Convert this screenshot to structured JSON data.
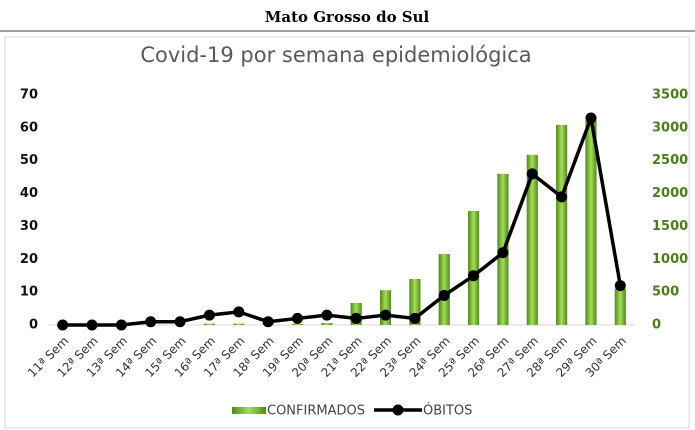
{
  "header": {
    "title": "Mato Grosso do Sul"
  },
  "chart_data": {
    "type": "bar_line",
    "title": "Covid-19 por semana epidemiológica",
    "categories": [
      "11ª Sem",
      "12ª Sem",
      "13ª Sem",
      "14ª Sem",
      "15ª Sem",
      "16ª Sem",
      "17ª Sem",
      "18ª Sem",
      "19ª Sem",
      "20ª Sem",
      "21ª Sem",
      "22ª Sem",
      "23ª Sem",
      "24ª Sem",
      "25ª Sem",
      "26ª Sem",
      "27ª Sem",
      "28ª Sem",
      "29ª Sem",
      "30ª Sem"
    ],
    "series": [
      {
        "name": "CONFIRMADOS",
        "type": "bar",
        "axis": "y2",
        "color": "#6fae2c",
        "values": [
          0,
          0,
          0,
          0,
          0,
          20,
          20,
          10,
          15,
          30,
          335,
          530,
          700,
          1080,
          1735,
          2300,
          2590,
          3045,
          3120,
          550
        ]
      },
      {
        "name": "ÓBITOS",
        "type": "line",
        "axis": "y",
        "color": "#000000",
        "values": [
          0,
          0,
          0,
          1,
          1,
          3,
          4,
          1,
          2,
          3,
          2,
          3,
          2,
          9,
          15,
          22,
          46,
          39,
          63,
          12
        ]
      }
    ],
    "ylim": [
      0,
      70
    ],
    "yticks": [
      0,
      10,
      20,
      30,
      40,
      50,
      60,
      70
    ],
    "y2lim": [
      0,
      3500
    ],
    "y2ticks": [
      0,
      500,
      1000,
      1500,
      2000,
      2500,
      3000,
      3500
    ],
    "grid": false,
    "legend": "bottom"
  }
}
